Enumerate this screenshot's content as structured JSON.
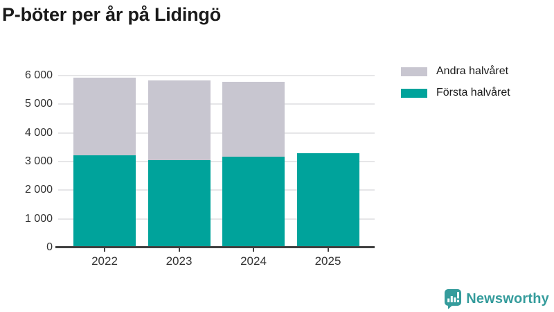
{
  "title": "P-böter per år på Lidingö",
  "chart_data": {
    "type": "bar",
    "stacked": true,
    "title": "P-böter per år på Lidingö",
    "categories": [
      "2022",
      "2023",
      "2024",
      "2025"
    ],
    "series": [
      {
        "name": "Första halvåret",
        "color": "#00a39b",
        "values": [
          3230,
          3040,
          3160,
          3280
        ]
      },
      {
        "name": "Andra halvåret",
        "color": "#c8c6d0",
        "values": [
          2700,
          2780,
          2630,
          0
        ]
      }
    ],
    "xlabel": "",
    "ylabel": "",
    "ylim": [
      0,
      6000
    ],
    "ytick_step": 1000,
    "ytick_labels": [
      "0",
      "1 000",
      "2 000",
      "3 000",
      "4 000",
      "5 000",
      "6 000"
    ],
    "grid": true,
    "gridline_color": "#e6e6e8",
    "axis_line_color": "#404040",
    "legend_position": "top-right"
  },
  "legend": {
    "items": [
      {
        "label": "Andra halvåret",
        "color": "#c8c6d0"
      },
      {
        "label": "Första halvåret",
        "color": "#00a39b"
      }
    ]
  },
  "branding": {
    "name": "Newsworthy",
    "color": "#359c9c",
    "icon": "newsworthy-logo-icon"
  }
}
